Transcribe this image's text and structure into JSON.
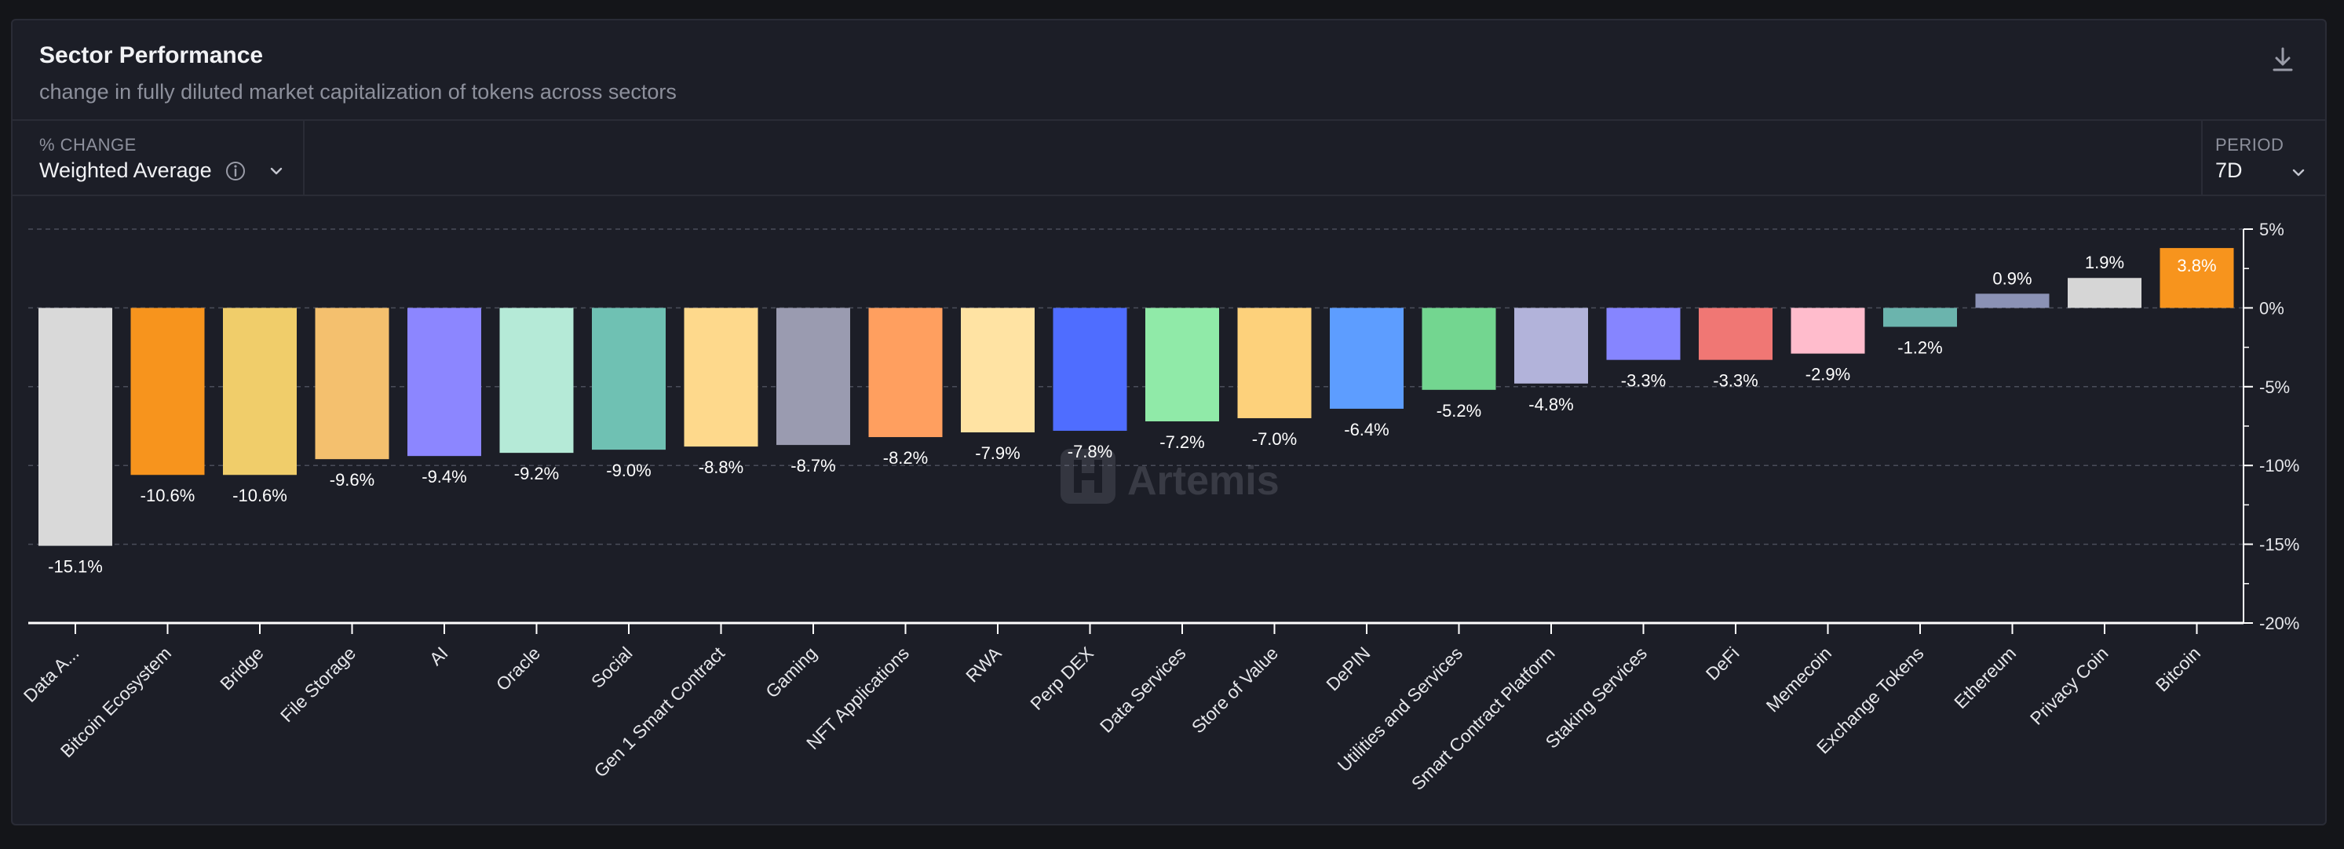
{
  "header": {
    "title": "Sector Performance",
    "subtitle": "change in fully diluted market capitalization of tokens across sectors"
  },
  "controls": {
    "metric_label": "% CHANGE",
    "metric_value": "Weighted Average",
    "period_label": "PERIOD",
    "period_value": "7D"
  },
  "watermark": "Artemis",
  "icons": {
    "download": "download-icon",
    "info": "info-icon",
    "chevron": "chevron-down-icon"
  },
  "colors": {
    "background": "#1c1e27",
    "axis": "#ffffff",
    "grid": "#4a4d5a",
    "label": "#ffffff"
  },
  "chart_data": {
    "type": "bar",
    "title": "Sector Performance",
    "subtitle": "change in fully diluted market capitalization of tokens across sectors",
    "ylim": [
      -20,
      5
    ],
    "yticks": [
      5,
      0,
      -5,
      -10,
      -15,
      -20
    ],
    "ytick_labels": [
      "5%",
      "0%",
      "-5%",
      "-10%",
      "-15%",
      "-20%"
    ],
    "grid": true,
    "categories": [
      "Data A...",
      "Bitcoin Ecosystem",
      "Bridge",
      "File Storage",
      "AI",
      "Oracle",
      "Social",
      "Gen 1 Smart Contract",
      "Gaming",
      "NFT Applications",
      "RWA",
      "Perp DEX",
      "Data Services",
      "Store of Value",
      "DePIN",
      "Utilities and Services",
      "Smart Contract Platform",
      "Staking Services",
      "DeFi",
      "Memecoin",
      "Exchange Tokens",
      "Ethereum",
      "Privacy Coin",
      "Bitcoin"
    ],
    "values": [
      -15.1,
      -10.6,
      -10.6,
      -9.6,
      -9.4,
      -9.2,
      -9.0,
      -8.8,
      -8.7,
      -8.2,
      -7.9,
      -7.8,
      -7.2,
      -7.0,
      -6.4,
      -5.2,
      -4.8,
      -3.3,
      -3.3,
      -2.9,
      -1.2,
      0.9,
      1.9,
      3.8
    ],
    "value_labels": [
      "-15.1%",
      "-10.6%",
      "-10.6%",
      "-9.6%",
      "-9.4%",
      "-9.2%",
      "-9.0%",
      "-8.8%",
      "-8.7%",
      "-8.2%",
      "-7.9%",
      "-7.8%",
      "-7.2%",
      "-7.0%",
      "-6.4%",
      "-5.2%",
      "-4.8%",
      "-3.3%",
      "-3.3%",
      "-2.9%",
      "-1.2%",
      "0.9%",
      "1.9%",
      "3.8%"
    ],
    "colors": [
      "#d9d9d9",
      "#f7941d",
      "#f0cd6a",
      "#f4c06e",
      "#8c86ff",
      "#b5ead7",
      "#6fc1b3",
      "#fed98c",
      "#9a9bb0",
      "#ff9f5f",
      "#ffe3a3",
      "#4f6dff",
      "#90eaa8",
      "#fdd17b",
      "#5d9dff",
      "#73d690",
      "#b2b3da",
      "#8685ff",
      "#f07774",
      "#ffbccc",
      "#6bb4ad",
      "#8b92b5",
      "#d6d6d6",
      "#f7941d"
    ]
  }
}
